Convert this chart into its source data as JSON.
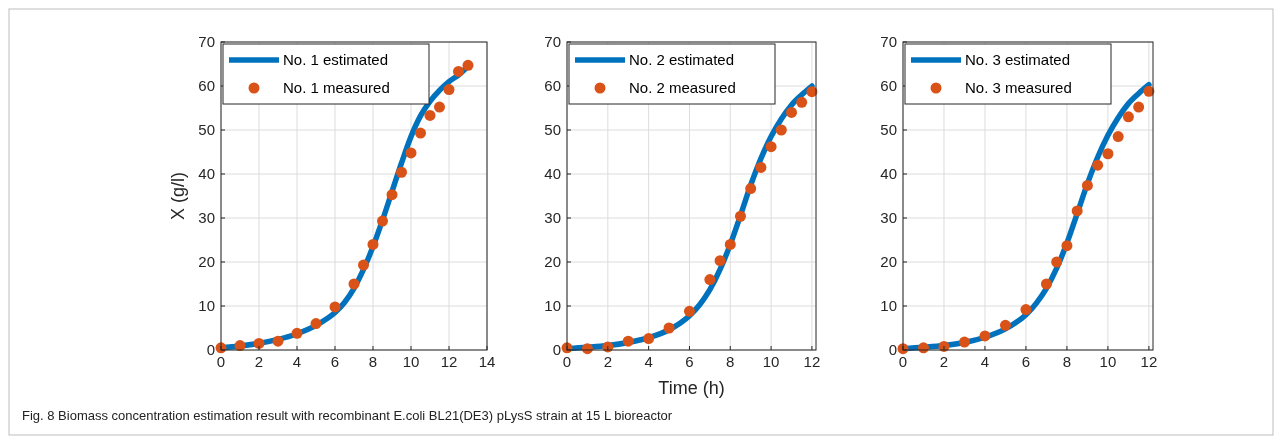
{
  "chart_data": [
    {
      "type": "line",
      "ylabel": "X (g/l)",
      "xlim": [
        0,
        14
      ],
      "xticks": [
        0,
        2,
        4,
        6,
        8,
        10,
        12,
        14
      ],
      "ylim": [
        0,
        70
      ],
      "yticks": [
        0,
        10,
        20,
        30,
        40,
        50,
        60,
        70
      ],
      "grid": true,
      "legend": "top left",
      "series": [
        {
          "name": "No. 1 estimated",
          "color": "#0072bd",
          "line_style": "solid",
          "x": [
            0,
            1,
            2,
            3,
            4,
            5,
            6,
            6.5,
            7,
            7.5,
            8,
            8.5,
            9,
            9.5,
            10,
            10.5,
            11,
            11.5,
            12,
            12.5,
            13
          ],
          "values": [
            0.5,
            0.9,
            1.5,
            2.4,
            3.7,
            5.6,
            8.5,
            10.8,
            14,
            18.3,
            23.5,
            29.5,
            36,
            42.5,
            48.5,
            53.2,
            56.5,
            59,
            61,
            62.5,
            64.5
          ]
        },
        {
          "name": "No. 1 measured",
          "type": "scatter",
          "color": "#d95319",
          "marker": "circle",
          "x": [
            0,
            1,
            2,
            3,
            4,
            5,
            6,
            7,
            7.5,
            8,
            8.5,
            9,
            9.5,
            10,
            10.5,
            11,
            11.5,
            12,
            12.5,
            13
          ],
          "values": [
            0.5,
            1,
            1.5,
            2,
            3.8,
            6,
            9.8,
            15,
            19.3,
            24,
            29.3,
            35.3,
            40.4,
            44.8,
            49.3,
            53.3,
            55.2,
            59.2,
            63.3,
            64.7
          ]
        }
      ],
      "annotations": [
        "Fig. 8 Biomass concentration estimation result with recombinant E.coli BL21(DE3) pLysS strain at 15 L bioreactor"
      ]
    },
    {
      "type": "line",
      "xlabel": "Time (h)",
      "xlim": [
        0,
        12.2
      ],
      "xticks": [
        0,
        2,
        4,
        6,
        8,
        10,
        12
      ],
      "ylim": [
        0,
        70
      ],
      "yticks": [
        0,
        10,
        20,
        30,
        40,
        50,
        60,
        70
      ],
      "grid": true,
      "legend": "top left",
      "series": [
        {
          "name": "No. 2 estimated",
          "color": "#0072bd",
          "line_style": "solid",
          "x": [
            0,
            1,
            2,
            3,
            4,
            5,
            6,
            6.5,
            7,
            7.5,
            8,
            8.5,
            9,
            9.5,
            10,
            10.5,
            11,
            11.5,
            12
          ],
          "values": [
            0.3,
            0.6,
            1,
            1.7,
            2.8,
            4.6,
            7.8,
            10.3,
            13.7,
            18.3,
            24,
            30.6,
            37.5,
            43.5,
            48.5,
            52.5,
            55.7,
            58,
            60
          ]
        },
        {
          "name": "No. 2 measured",
          "type": "scatter",
          "color": "#d95319",
          "marker": "circle",
          "x": [
            0,
            1,
            2,
            3,
            4,
            5,
            6,
            7,
            7.5,
            8,
            8.5,
            9,
            9.5,
            10,
            10.5,
            11,
            11.5,
            12
          ],
          "values": [
            0.5,
            0.3,
            0.7,
            2,
            2.6,
            5,
            8.8,
            16,
            20.3,
            24,
            30.4,
            36.7,
            41.5,
            46.2,
            50,
            54,
            56.3,
            58.7
          ]
        }
      ]
    },
    {
      "type": "line",
      "xlim": [
        0,
        12.2
      ],
      "xticks": [
        0,
        2,
        4,
        6,
        8,
        10,
        12
      ],
      "ylim": [
        0,
        70
      ],
      "yticks": [
        0,
        10,
        20,
        30,
        40,
        50,
        60,
        70
      ],
      "grid": true,
      "legend": "top left",
      "series": [
        {
          "name": "No. 3 estimated",
          "color": "#0072bd",
          "line_style": "solid",
          "x": [
            0,
            1,
            2,
            3,
            4,
            5,
            6,
            6.5,
            7,
            7.5,
            8,
            8.5,
            9,
            9.5,
            10,
            10.5,
            11,
            11.5,
            12
          ],
          "values": [
            0.3,
            0.6,
            1,
            1.7,
            2.9,
            4.8,
            8,
            10.6,
            14,
            18.6,
            24.3,
            31,
            37.8,
            43.8,
            48.8,
            52.8,
            56,
            58.3,
            60.3
          ]
        },
        {
          "name": "No. 3 measured",
          "type": "scatter",
          "color": "#d95319",
          "marker": "circle",
          "x": [
            0,
            1,
            2,
            3,
            4,
            5,
            6,
            7,
            7.5,
            8,
            8.5,
            9,
            9.5,
            10,
            10.5,
            11,
            11.5,
            12
          ],
          "values": [
            0.3,
            0.5,
            0.8,
            1.8,
            3.2,
            5.6,
            9.2,
            15,
            20,
            23.7,
            31.6,
            37.4,
            42,
            44.6,
            48.5,
            53,
            55.2,
            58.8
          ]
        }
      ]
    }
  ]
}
